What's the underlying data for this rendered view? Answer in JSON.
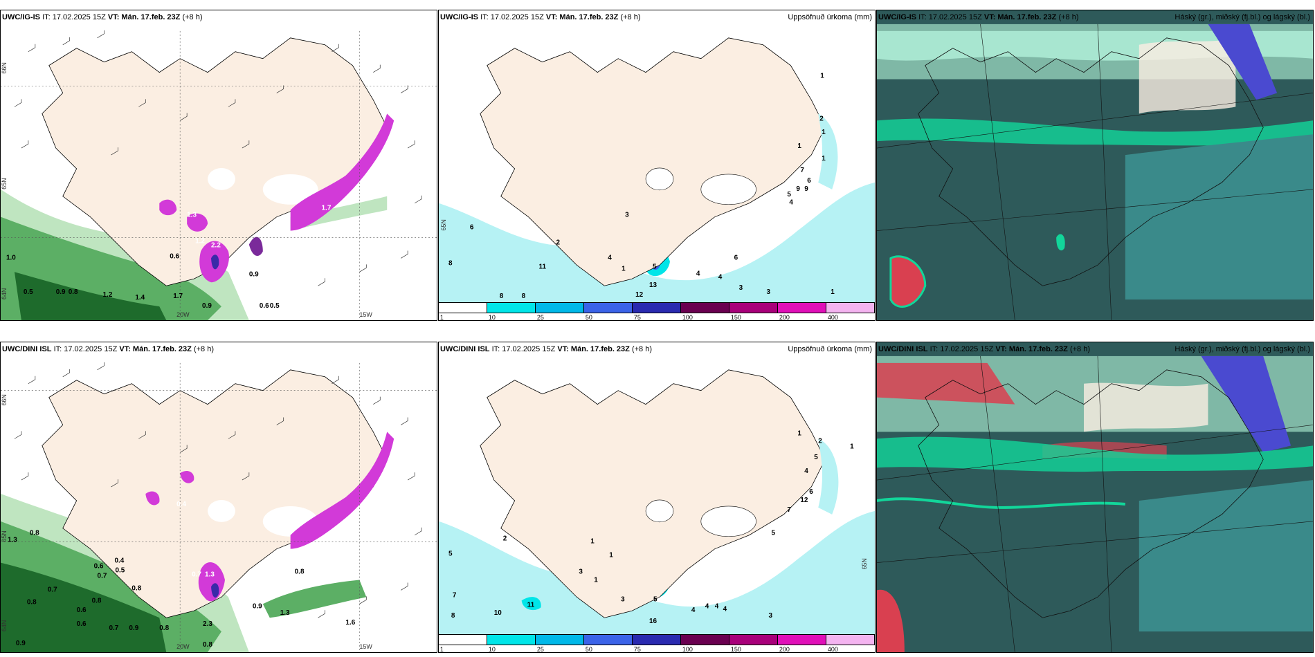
{
  "panels": [
    {
      "id": "p1",
      "model": "UWC/IG-IS",
      "it": "IT: 17.02.2025 15Z",
      "vt": "VT: Mán. 17.feb. 23Z",
      "lead": "(+8 h)",
      "title_right": "",
      "labels": [
        "1.0",
        "0.5",
        "0.9",
        "0.8",
        "1.4",
        "1.2",
        "1.7",
        "0.9",
        "0.6",
        "0.5",
        "0.9",
        "0.6",
        "1.2",
        "2.2",
        "1.3",
        "1.7"
      ],
      "axis": [
        "20W",
        "15W",
        "66N",
        "65N",
        "64N"
      ]
    },
    {
      "id": "p2",
      "model": "UWC/IG-IS",
      "it": "IT: 17.02.2025 15Z",
      "vt": "VT: Mán. 17.feb. 23Z",
      "lead": "(+8 h)",
      "title_right": "Uppsöfnuð úrkoma (mm)",
      "labels": [
        "6",
        "8",
        "2",
        "3",
        "4",
        "11",
        "1",
        "5",
        "13",
        "12",
        "8",
        "8",
        "4",
        "4",
        "6",
        "3",
        "3",
        "1",
        "1",
        "2",
        "1",
        "1",
        "7",
        "6",
        "9",
        "9",
        "5",
        "4",
        "1"
      ],
      "legend_ticks": [
        "1",
        "10",
        "25",
        "50",
        "75",
        "100",
        "150",
        "200",
        "400"
      ],
      "legend_colors": [
        "#ffffff",
        "#00e5e8",
        "#00b8e8",
        "#3b63e8",
        "#2a2ab0",
        "#6a0050",
        "#a8007a",
        "#e010b8",
        "#f4b4f0"
      ],
      "axis": [
        "65N"
      ]
    },
    {
      "id": "p3",
      "model": "UWC/IG-IS",
      "it": "IT: 17.02.2025 15Z",
      "vt": "VT: Mán. 17.feb. 23Z",
      "lead": "(+8 h)",
      "title_right": "Háský (gr.), miðský (fj.bl.) og lágský (bl.)"
    },
    {
      "id": "p4",
      "model": "UWC/DINI ISL",
      "it": "IT: 17.02.2025 15Z",
      "vt": "VT: Mán. 17.feb. 23Z",
      "lead": "(+8 h)",
      "title_right": "",
      "labels": [
        "1.3",
        "0.8",
        "0.6",
        "0.7",
        "0.5",
        "0.4",
        "0.8",
        "0.7",
        "0.6",
        "0.9",
        "0.8",
        "0.7",
        "0.9",
        "0.6",
        "0.8",
        "0.8",
        "2.3",
        "0.8",
        "0.9",
        "1.3",
        "1.6",
        "0.8",
        "0.4",
        "0.7",
        "1.3"
      ],
      "axis": [
        "20W",
        "15W",
        "66N",
        "65N",
        "64N"
      ]
    },
    {
      "id": "p5",
      "model": "UWC/DINI ISL",
      "it": "IT: 17.02.2025 15Z",
      "vt": "VT: Mán. 17.feb. 23Z",
      "lead": "(+8 h)",
      "title_right": "Uppsöfnuð úrkoma (mm)",
      "labels": [
        "5",
        "2",
        "1",
        "1",
        "3",
        "1",
        "7",
        "11",
        "10",
        "8",
        "3",
        "16",
        "5",
        "4",
        "4",
        "4",
        "4",
        "3",
        "5",
        "7",
        "12",
        "6",
        "4",
        "5",
        "2",
        "1",
        "1"
      ],
      "legend_ticks": [
        "1",
        "10",
        "25",
        "50",
        "75",
        "100",
        "150",
        "200",
        "400"
      ],
      "legend_colors": [
        "#ffffff",
        "#00e5e8",
        "#00b8e8",
        "#3b63e8",
        "#2a2ab0",
        "#6a0050",
        "#a8007a",
        "#e010b8",
        "#f4b4f0"
      ],
      "axis": [
        "65N"
      ]
    },
    {
      "id": "p6",
      "model": "UWC/DINI ISL",
      "it": "IT: 17.02.2025 15Z",
      "vt": "VT: Mán. 17.feb. 23Z",
      "lead": "(+8 h)",
      "title_right": "Háský (gr.), miðský (fj.bl.) og lágský (bl.)"
    }
  ],
  "colors": {
    "land": "#fbeee2",
    "sea_precip": "#b6f2f4",
    "green_dark": "#1e6b2c",
    "green_mid": "#5caf65",
    "green_light": "#bfe5c0",
    "magenta": "#d23ad8",
    "cloud_dark": "#2e5a5a",
    "cloud_teal": "#3a8a8a",
    "cloud_green": "#12d69a",
    "cloud_blue": "#4a4ad0",
    "cloud_red": "#d94050"
  }
}
